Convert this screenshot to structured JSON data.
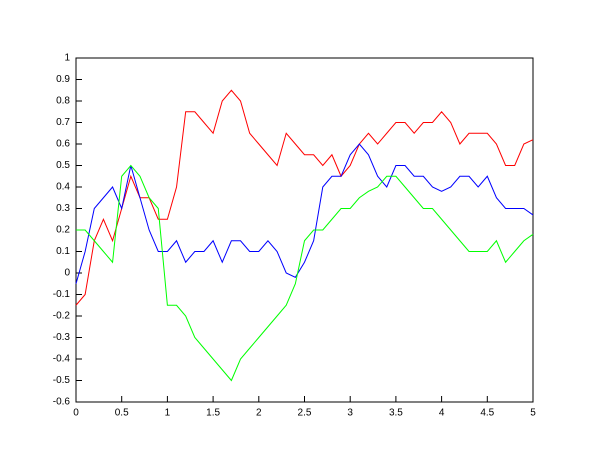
{
  "chart_data": {
    "type": "line",
    "x": [
      0,
      0.1,
      0.2,
      0.3,
      0.4,
      0.5,
      0.6,
      0.7,
      0.8,
      0.9,
      1,
      1.1,
      1.2,
      1.3,
      1.4,
      1.5,
      1.6,
      1.7,
      1.8,
      1.9,
      2,
      2.1,
      2.2,
      2.3,
      2.4,
      2.5,
      2.6,
      2.7,
      2.8,
      2.9,
      3,
      3.1,
      3.2,
      3.3,
      3.4,
      3.5,
      3.6,
      3.7,
      3.8,
      3.9,
      4,
      4.1,
      4.2,
      4.3,
      4.4,
      4.5,
      4.6,
      4.7,
      4.8,
      4.9,
      5
    ],
    "series": [
      {
        "color": "#ff0000",
        "values": [
          -0.15,
          -0.1,
          0.15,
          0.25,
          0.15,
          0.3,
          0.45,
          0.35,
          0.35,
          0.25,
          0.25,
          0.4,
          0.75,
          0.75,
          0.7,
          0.65,
          0.8,
          0.85,
          0.8,
          0.65,
          0.6,
          0.55,
          0.5,
          0.65,
          0.6,
          0.55,
          0.55,
          0.5,
          0.55,
          0.45,
          0.5,
          0.6,
          0.65,
          0.6,
          0.65,
          0.7,
          0.7,
          0.65,
          0.7,
          0.7,
          0.75,
          0.7,
          0.6,
          0.65,
          0.65,
          0.65,
          0.6,
          0.5,
          0.5,
          0.6,
          0.62
        ]
      },
      {
        "color": "#0000ff",
        "values": [
          -0.05,
          0.1,
          0.3,
          0.35,
          0.4,
          0.3,
          0.5,
          0.35,
          0.2,
          0.1,
          0.1,
          0.15,
          0.05,
          0.1,
          0.1,
          0.15,
          0.05,
          0.15,
          0.15,
          0.1,
          0.1,
          0.15,
          0.1,
          0,
          -0.02,
          0.05,
          0.15,
          0.4,
          0.45,
          0.45,
          0.55,
          0.6,
          0.55,
          0.45,
          0.4,
          0.5,
          0.5,
          0.45,
          0.45,
          0.4,
          0.38,
          0.4,
          0.45,
          0.45,
          0.4,
          0.45,
          0.35,
          0.3,
          0.3,
          0.3,
          0.27
        ]
      },
      {
        "color": "#00ff00",
        "values": [
          0.2,
          0.2,
          0.15,
          0.1,
          0.05,
          0.45,
          0.5,
          0.45,
          0.35,
          0.3,
          -0.15,
          -0.15,
          -0.2,
          -0.3,
          -0.35,
          -0.4,
          -0.45,
          -0.5,
          -0.4,
          -0.35,
          -0.3,
          -0.25,
          -0.2,
          -0.15,
          -0.05,
          0.15,
          0.2,
          0.2,
          0.25,
          0.3,
          0.3,
          0.35,
          0.38,
          0.4,
          0.45,
          0.45,
          0.4,
          0.35,
          0.3,
          0.3,
          0.25,
          0.2,
          0.15,
          0.1,
          0.1,
          0.1,
          0.15,
          0.05,
          0.1,
          0.15,
          0.18
        ]
      }
    ],
    "xlim": [
      0,
      5
    ],
    "xticks": [
      0,
      0.5,
      1,
      1.5,
      2,
      2.5,
      3,
      3.5,
      4,
      4.5,
      5
    ],
    "ylim": [
      -0.6,
      1
    ],
    "yticks": [
      -0.6,
      -0.5,
      -0.4,
      -0.3,
      -0.2,
      -0.1,
      0,
      0.1,
      0.2,
      0.3,
      0.4,
      0.5,
      0.6,
      0.7,
      0.8,
      0.9,
      1
    ],
    "grid": false
  }
}
